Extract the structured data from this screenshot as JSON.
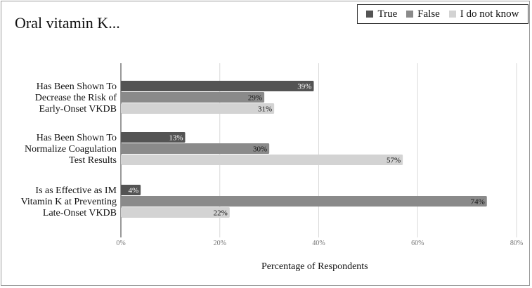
{
  "chart_data": {
    "type": "bar",
    "orientation": "horizontal",
    "title": "Oral vitamin K...",
    "xlabel": "Percentage of Respondents",
    "ylabel": "",
    "xlim": [
      0,
      80
    ],
    "xticks": [
      "0%",
      "20%",
      "40%",
      "60%",
      "80%"
    ],
    "grid": true,
    "legend_position": "top-right",
    "categories": [
      [
        "Has Been Shown To",
        "Decrease the Risk of",
        "Early-Onset VKDB"
      ],
      [
        "Has Been Shown To",
        "Normalize Coagulation",
        "Test Results"
      ],
      [
        "Is as Effective as IM",
        "Vitamin K at Preventing",
        "Late-Onset VKDB"
      ]
    ],
    "series": [
      {
        "name": "True",
        "color": "#545454",
        "label_color": "#ffffff",
        "values": [
          39,
          13,
          4
        ]
      },
      {
        "name": "False",
        "color": "#8a8a8a",
        "label_color": "#111111",
        "values": [
          29,
          30,
          74
        ]
      },
      {
        "name": "I do not know",
        "color": "#d3d3d3",
        "label_color": "#111111",
        "values": [
          31,
          57,
          22
        ]
      }
    ]
  }
}
